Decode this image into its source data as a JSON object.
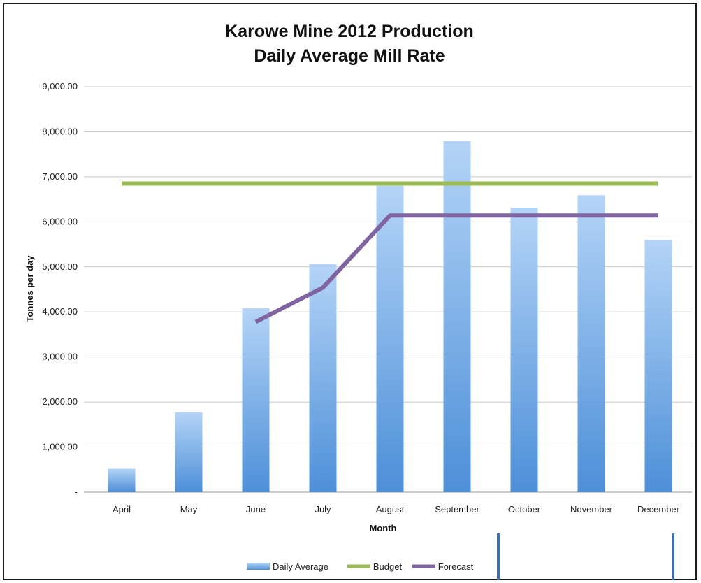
{
  "chart_data": {
    "type": "bar",
    "title": "Karowe Mine 2012 Production",
    "subtitle": "Daily Average Mill Rate",
    "xlabel": "Month",
    "ylabel": "Tonnes per day",
    "categories": [
      "April",
      "May",
      "June",
      "July",
      "August",
      "September",
      "October",
      "November",
      "December"
    ],
    "y_ticks": [
      "-",
      "1,000.00",
      "2,000.00",
      "3,000.00",
      "4,000.00",
      "5,000.00",
      "6,000.00",
      "7,000.00",
      "8,000.00",
      "9,000.00"
    ],
    "ylim": [
      0,
      9000
    ],
    "grid": true,
    "legend_position": "bottom",
    "series": [
      {
        "name": "Daily Average",
        "kind": "bar",
        "color": "#5b9bd5",
        "values": [
          520,
          1770,
          4080,
          5060,
          6800,
          7790,
          6310,
          6590,
          5600
        ]
      },
      {
        "name": "Budget",
        "kind": "line",
        "color": "#9bbb59",
        "values": [
          6850,
          6850,
          6850,
          6850,
          6850,
          6850,
          6850,
          6850,
          6850
        ]
      },
      {
        "name": "Forecast",
        "kind": "line",
        "color": "#8064a2",
        "values": [
          null,
          null,
          3780,
          4540,
          6140,
          6140,
          6140,
          6140,
          6140
        ]
      }
    ]
  }
}
